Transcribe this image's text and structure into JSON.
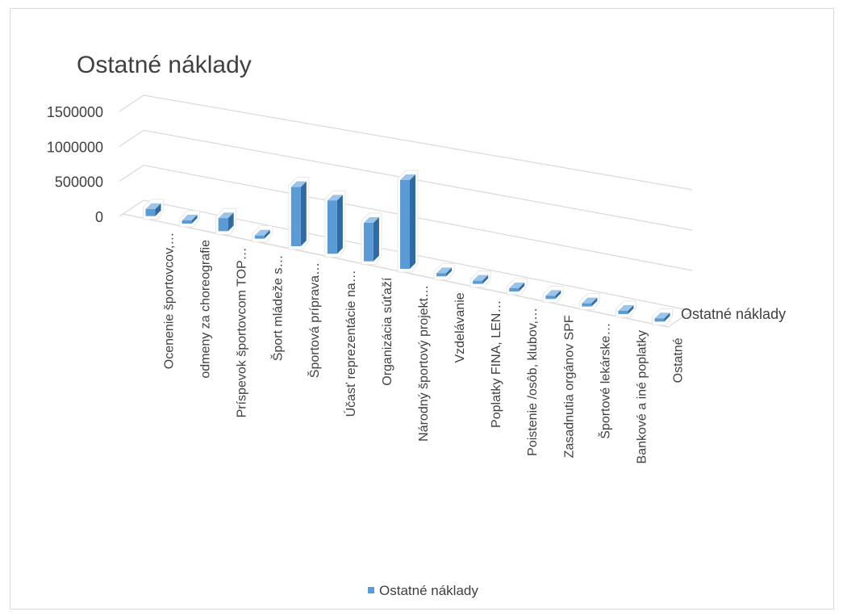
{
  "chart_data": {
    "type": "bar",
    "title": "Ostatné náklady",
    "xlabel": "",
    "ylabel": "",
    "ylim": [
      0,
      1500000
    ],
    "yticks": [
      "0",
      "500000",
      "1000000",
      "1500000"
    ],
    "categories": [
      "Ocenenie športovcov,…",
      "odmeny za choreografie",
      "Príspevok športovcom TOP…",
      "Šport mládeže s…",
      "Športová príprava…",
      "Účasť reprezentácie na…",
      "Organizácia súťaží",
      "Národný športový projekt…",
      "Vzdelávanie",
      "Poplatky FINA, LEN…",
      "Poistenie /osôb, klubov,…",
      "Zasadnutia orgánov SPF",
      "Športové lekárske…",
      "Bankové a iné poplatky",
      "Ostatné"
    ],
    "series": [
      {
        "name": "Ostatné náklady",
        "values": [
          120000,
          10000,
          220000,
          10000,
          1000000,
          900000,
          650000,
          1500000,
          10000,
          10000,
          10000,
          10000,
          10000,
          10000,
          10000
        ]
      }
    ],
    "depth_axis_label": "Ostatné náklady",
    "grid": true,
    "legend_position": "bottom",
    "colors": {
      "bar_front": "#5b9bd5",
      "bar_side": "#2e6aa3",
      "bar_top": "#9cc3e8",
      "grid": "#d9d9d9",
      "text": "#404040"
    }
  }
}
